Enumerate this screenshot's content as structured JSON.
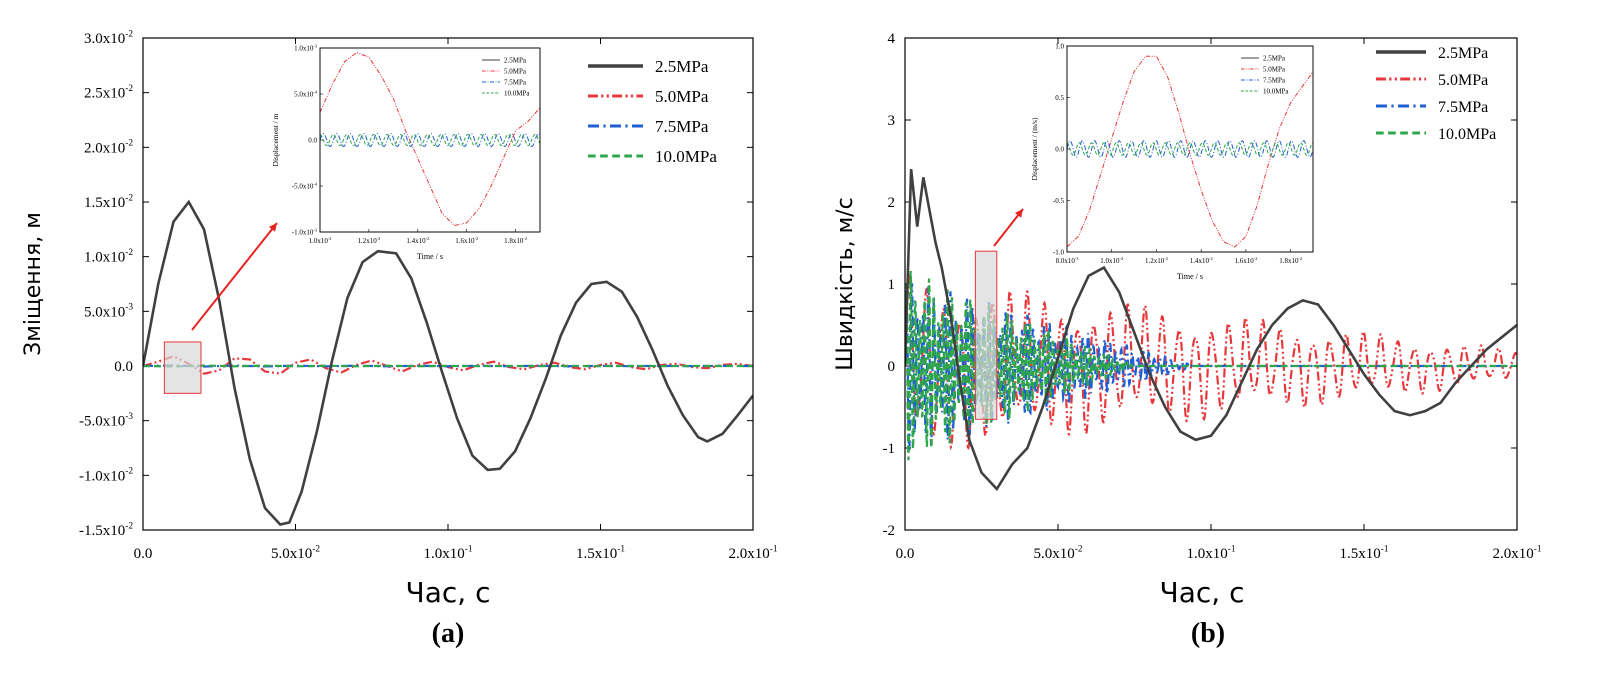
{
  "colors": {
    "s2_5": "#404040",
    "s5_0": "#e8373a",
    "s7_5": "#1f5fd6",
    "s10_0": "#2ea64a",
    "frame": "#000000",
    "highlight_fill": "#d9d9d9",
    "highlight_stroke": "#e8373a",
    "arrow": "#e8231f"
  },
  "chart_data": [
    {
      "panel_label": "(a)",
      "type": "line",
      "xlabel": "Час, с",
      "ylabel": "Зміщення, м",
      "xlim": [
        0.0,
        0.2
      ],
      "ylim": [
        -0.015,
        0.03
      ],
      "xticks": [
        0.0,
        0.05,
        0.1,
        0.15,
        0.2
      ],
      "xtick_labels": [
        "0.0",
        "5.0x10",
        "1.0x10",
        "1.5x10",
        "2.0x10"
      ],
      "xtick_exps": [
        "",
        "-2",
        "-1",
        "-1",
        "-1"
      ],
      "yticks": [
        -0.015,
        -0.01,
        -0.005,
        0.0,
        0.005,
        0.01,
        0.015,
        0.02,
        0.025,
        0.03
      ],
      "ytick_labels": [
        "-1.5x10",
        "-1.0x10",
        "-5.0x10",
        "0.0",
        "5.0x10",
        "1.0x10",
        "1.5x10",
        "2.0x10",
        "2.5x10",
        "3.0x10"
      ],
      "ytick_exps": [
        "-2",
        "-2",
        "-3",
        "",
        "-3",
        "-2",
        "-2",
        "-2",
        "-2",
        "-2"
      ],
      "legend_position": "top-right",
      "series": [
        {
          "name": "2.5MPa",
          "color_key": "s2_5",
          "dash": "solid",
          "x": [
            0.0,
            0.005,
            0.01,
            0.015,
            0.02,
            0.025,
            0.03,
            0.035,
            0.04,
            0.045,
            0.048,
            0.052,
            0.057,
            0.062,
            0.067,
            0.072,
            0.077,
            0.083,
            0.088,
            0.093,
            0.098,
            0.103,
            0.108,
            0.113,
            0.117,
            0.122,
            0.127,
            0.132,
            0.137,
            0.142,
            0.147,
            0.152,
            0.157,
            0.162,
            0.167,
            0.172,
            0.177,
            0.182,
            0.185,
            0.19,
            0.195,
            0.2
          ],
          "y": [
            0.0,
            0.0075,
            0.0132,
            0.015,
            0.0125,
            0.006,
            -0.002,
            -0.0085,
            -0.013,
            -0.0145,
            -0.0143,
            -0.0115,
            -0.006,
            0.0005,
            0.0062,
            0.0095,
            0.0105,
            0.0103,
            0.008,
            0.004,
            -0.0005,
            -0.0048,
            -0.0082,
            -0.0095,
            -0.0094,
            -0.0078,
            -0.0048,
            -0.0012,
            0.0028,
            0.0058,
            0.0075,
            0.0077,
            0.0068,
            0.0045,
            0.0015,
            -0.0018,
            -0.0045,
            -0.0065,
            -0.0069,
            -0.0062,
            -0.0045,
            -0.0027
          ]
        },
        {
          "name": "5.0MPa",
          "color_key": "s5_0",
          "dash": "dashdotdot",
          "x": [
            0.0,
            0.005,
            0.01,
            0.015,
            0.02,
            0.025,
            0.03,
            0.035,
            0.04,
            0.045,
            0.05,
            0.055,
            0.06,
            0.065,
            0.07,
            0.075,
            0.08,
            0.085,
            0.09,
            0.095,
            0.1,
            0.105,
            0.11,
            0.115,
            0.12,
            0.125,
            0.13,
            0.135,
            0.14,
            0.145,
            0.15,
            0.155,
            0.16,
            0.165,
            0.17,
            0.175,
            0.18,
            0.185,
            0.19,
            0.195,
            0.2
          ],
          "y": [
            0.0,
            0.0004,
            0.0009,
            0.0002,
            -0.0007,
            -0.0004,
            0.0007,
            0.0006,
            -0.0005,
            -0.0007,
            0.0003,
            0.0006,
            -0.0002,
            -0.0006,
            0.0001,
            0.0005,
            0.0,
            -0.0005,
            0.0001,
            0.0004,
            -0.0001,
            -0.0004,
            0.0001,
            0.0004,
            -0.0001,
            -0.0003,
            0.0001,
            0.0003,
            -0.0001,
            -0.0003,
            0.0001,
            0.0003,
            -0.0001,
            -0.0003,
            0.0001,
            0.0002,
            -0.0001,
            -0.0002,
            0.0001,
            0.0002,
            0.0
          ]
        },
        {
          "name": "7.5MPa",
          "color_key": "s7_5",
          "dash": "dashdot",
          "x": [
            0.0,
            0.01,
            0.02,
            0.03,
            0.04,
            0.05,
            0.06,
            0.07,
            0.08,
            0.09,
            0.1,
            0.11,
            0.12,
            0.13,
            0.14,
            0.15,
            0.16,
            0.17,
            0.18,
            0.19,
            0.2
          ],
          "y": [
            0.0,
            5e-05,
            -5e-05,
            4e-05,
            -4e-05,
            3e-05,
            -3e-05,
            3e-05,
            -3e-05,
            2e-05,
            -2e-05,
            2e-05,
            -2e-05,
            2e-05,
            -2e-05,
            1e-05,
            -1e-05,
            1e-05,
            -1e-05,
            1e-05,
            0.0
          ]
        },
        {
          "name": "10.0MPa",
          "color_key": "s10_0",
          "dash": "dashed",
          "x": [
            0.0,
            0.01,
            0.02,
            0.03,
            0.04,
            0.05,
            0.06,
            0.07,
            0.08,
            0.09,
            0.1,
            0.11,
            0.12,
            0.13,
            0.14,
            0.15,
            0.16,
            0.17,
            0.18,
            0.19,
            0.2
          ],
          "y": [
            0.0,
            -4e-05,
            4e-05,
            -3e-05,
            3e-05,
            -3e-05,
            2e-05,
            -2e-05,
            2e-05,
            -2e-05,
            1e-05,
            -1e-05,
            1e-05,
            -1e-05,
            1e-05,
            -1e-05,
            1e-05,
            -1e-05,
            0.0,
            0.0,
            0.0
          ]
        }
      ],
      "highlight_x": [
        0.007,
        0.019
      ],
      "highlight_y": [
        -0.0025,
        0.0022
      ],
      "inset": {
        "xlabel": "Time / s",
        "ylabel": "Displacement / m",
        "xlim": [
          0.01,
          0.019
        ],
        "ylim": [
          -0.001,
          0.001
        ],
        "xticks": [
          0.01,
          0.012,
          0.014,
          0.016,
          0.018
        ],
        "xtick_labels": [
          "1.0x10",
          "1.2x10",
          "1.4x10",
          "1.6x10",
          "1.8x10"
        ],
        "xtick_exps": [
          "-2",
          "-2",
          "-2",
          "-2",
          "-2"
        ],
        "yticks": [
          -0.001,
          -0.0005,
          0.0,
          0.0005,
          0.001
        ],
        "ytick_labels": [
          "-1.0x10",
          "-5.0x10",
          "0.0",
          "5.0x10",
          "1.0x10"
        ],
        "ytick_exps": [
          "-3",
          "-4",
          "",
          "-4",
          "-3"
        ],
        "series": [
          {
            "name": "2.5MPa",
            "color_key": "s2_5",
            "dash": "solid",
            "x": [],
            "y": []
          },
          {
            "name": "5.0MPa",
            "color_key": "s5_0",
            "dash": "dashdotdot",
            "x": [
              0.01,
              0.0105,
              0.011,
              0.0115,
              0.012,
              0.0125,
              0.013,
              0.0135,
              0.014,
              0.0145,
              0.015,
              0.0155,
              0.016,
              0.0165,
              0.017,
              0.0175,
              0.018,
              0.0185,
              0.019
            ],
            "y": [
              0.0003,
              0.0006,
              0.00085,
              0.00095,
              0.0009,
              0.0007,
              0.00045,
              0.0001,
              -0.0002,
              -0.0005,
              -0.0008,
              -0.00093,
              -0.0009,
              -0.00075,
              -0.0005,
              -0.0002,
              0.0001,
              0.0002,
              0.00035
            ]
          },
          {
            "name": "7.5MPa",
            "color_key": "s7_5",
            "dash": "dashdot",
            "osc_amp": 7e-05,
            "osc_period": 0.00055
          },
          {
            "name": "10.0MPa",
            "color_key": "s10_0",
            "dash": "dashed",
            "osc_amp": 6e-05,
            "osc_period": 0.00055,
            "osc_phase": 1.6
          }
        ]
      }
    },
    {
      "panel_label": "(b)",
      "type": "line",
      "xlabel": "Час, с",
      "ylabel": "Швидкість, м/с",
      "xlim": [
        0.0,
        0.2
      ],
      "ylim": [
        -2,
        4
      ],
      "xticks": [
        0.0,
        0.05,
        0.1,
        0.15,
        0.2
      ],
      "xtick_labels": [
        "0.0",
        "5.0x10",
        "1.0x10",
        "1.5x10",
        "2.0x10"
      ],
      "xtick_exps": [
        "",
        "-2",
        "-1",
        "-1",
        "-1"
      ],
      "yticks": [
        -2,
        -1,
        0,
        1,
        2,
        3,
        4
      ],
      "ytick_labels": [
        "-2",
        "-1",
        "0",
        "1",
        "2",
        "3",
        "4"
      ],
      "ytick_exps": [
        "",
        "",
        "",
        "",
        "",
        "",
        ""
      ],
      "legend_position": "top-right",
      "series": [
        {
          "name": "2.5MPa",
          "color_key": "s2_5",
          "dash": "solid",
          "x": [
            0.0,
            0.002,
            0.004,
            0.006,
            0.008,
            0.01,
            0.012,
            0.015,
            0.018,
            0.021,
            0.025,
            0.03,
            0.035,
            0.04,
            0.045,
            0.05,
            0.055,
            0.06,
            0.065,
            0.07,
            0.075,
            0.08,
            0.085,
            0.09,
            0.095,
            0.1,
            0.105,
            0.11,
            0.115,
            0.12,
            0.125,
            0.13,
            0.135,
            0.14,
            0.145,
            0.15,
            0.155,
            0.16,
            0.165,
            0.17,
            0.175,
            0.18,
            0.185,
            0.19,
            0.195,
            0.2
          ],
          "y": [
            0.0,
            2.4,
            1.7,
            2.3,
            1.9,
            1.5,
            1.2,
            0.6,
            -0.2,
            -0.9,
            -1.3,
            -1.5,
            -1.2,
            -1.0,
            -0.5,
            0.1,
            0.7,
            1.1,
            1.2,
            0.9,
            0.4,
            -0.1,
            -0.5,
            -0.8,
            -0.9,
            -0.85,
            -0.6,
            -0.2,
            0.2,
            0.5,
            0.7,
            0.8,
            0.75,
            0.5,
            0.2,
            -0.1,
            -0.35,
            -0.55,
            -0.6,
            -0.55,
            -0.45,
            -0.2,
            0.0,
            0.2,
            0.35,
            0.5
          ]
        },
        {
          "name": "5.0MPa",
          "color_key": "s5_0",
          "dash": "dashdotdot",
          "osc_amp_start": 1.1,
          "osc_amp_end": 0.2,
          "osc_period": 0.0055
        },
        {
          "name": "7.5MPa",
          "color_key": "s7_5",
          "dash": "dashdot",
          "osc_amp_start": 1.1,
          "osc_amp_end": 0.0,
          "osc_period": 0.0018,
          "osc_end_x": 0.095
        },
        {
          "name": "10.0MPa",
          "color_key": "s10_0",
          "dash": "dashed",
          "osc_amp_start": 1.2,
          "osc_amp_end": 0.0,
          "osc_period": 0.0015,
          "osc_end_x": 0.075
        }
      ],
      "highlight_x": [
        0.023,
        0.03
      ],
      "highlight_y": [
        -0.65,
        1.4
      ],
      "inset": {
        "xlabel": "Time / s",
        "ylabel": "Displacement / (m/s)",
        "xlim": [
          0.008,
          0.019
        ],
        "ylim": [
          -1.0,
          1.0
        ],
        "xticks": [
          0.008,
          0.01,
          0.012,
          0.014,
          0.016,
          0.018
        ],
        "xtick_labels": [
          "8.0x10",
          "1.0x10",
          "1.2x10",
          "1.4x10",
          "1.6x10",
          "1.8x10"
        ],
        "xtick_exps": [
          "-3",
          "-2",
          "-2",
          "-2",
          "-2",
          "-2"
        ],
        "yticks": [
          -1.0,
          -0.5,
          0.0,
          0.5,
          1.0
        ],
        "ytick_labels": [
          "-1.0",
          "-0.5",
          "0.0",
          "0.5",
          "1.0"
        ],
        "ytick_exps": [
          "",
          "",
          "",
          "",
          ""
        ],
        "series": [
          {
            "name": "2.5MPa",
            "color_key": "s2_5",
            "dash": "solid",
            "x": [],
            "y": []
          },
          {
            "name": "5.0MPa",
            "color_key": "s5_0",
            "dash": "dashdotdot",
            "x": [
              0.008,
              0.0085,
              0.009,
              0.0095,
              0.01,
              0.0105,
              0.011,
              0.0115,
              0.012,
              0.0125,
              0.013,
              0.0135,
              0.014,
              0.0145,
              0.015,
              0.0155,
              0.016,
              0.0165,
              0.017,
              0.0175,
              0.018,
              0.0185,
              0.019
            ],
            "y": [
              -0.95,
              -0.85,
              -0.6,
              -0.25,
              0.1,
              0.45,
              0.75,
              0.9,
              0.9,
              0.7,
              0.35,
              -0.05,
              -0.4,
              -0.7,
              -0.9,
              -0.95,
              -0.85,
              -0.55,
              -0.15,
              0.2,
              0.45,
              0.6,
              0.75
            ]
          },
          {
            "name": "7.5MPa",
            "color_key": "s7_5",
            "dash": "dashdot",
            "osc_amp": 0.08,
            "osc_period": 0.00055
          },
          {
            "name": "10.0MPa",
            "color_key": "s10_0",
            "dash": "dashed",
            "osc_amp": 0.06,
            "osc_period": 0.00055,
            "osc_phase": 1.6
          }
        ]
      }
    }
  ]
}
